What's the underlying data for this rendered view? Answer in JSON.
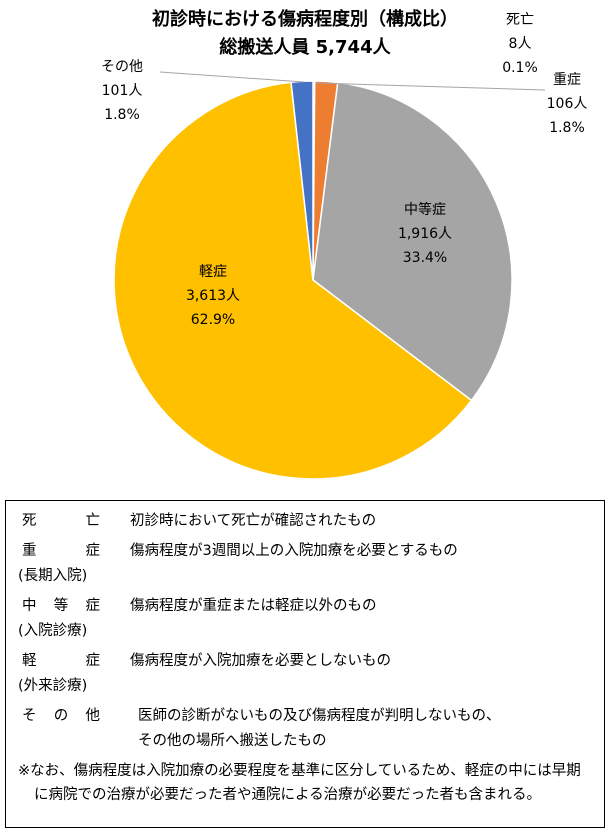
{
  "chart_data": {
    "type": "pie",
    "title": "初診時における傷病程度別（構成比）",
    "subtitle": "総搬送人員 5,744人",
    "categories": [
      "死亡",
      "重症",
      "中等症",
      "軽症",
      "その他"
    ],
    "values": [
      8,
      106,
      1916,
      3613,
      101
    ],
    "value_labels": [
      "8人",
      "106人",
      "1,916人",
      "3,613人",
      "101人"
    ],
    "percentage_labels": [
      "0.1%",
      "1.8%",
      "33.4%",
      "62.9%",
      "1.8%"
    ],
    "colors": [
      "#5b9bd5",
      "#ed7d31",
      "#a5a5a5",
      "#ffc000",
      "#4472c4"
    ]
  },
  "definitions": [
    {
      "term": "死亡",
      "description": [
        "初診時において死亡が確認されたもの"
      ]
    },
    {
      "term": "重症",
      "detail": "(長期入院)",
      "description": [
        "傷病程度が3週間以上の入院加療を必要とするもの"
      ]
    },
    {
      "term": "中等症",
      "detail": "(入院診療)",
      "description": [
        "傷病程度が重症または軽症以外のもの"
      ]
    },
    {
      "term": "軽症",
      "detail": "(外来診療)",
      "description": [
        "傷病程度が入院加療を必要としないもの"
      ]
    },
    {
      "term": "その他",
      "description": [
        "医師の診断がないもの及び傷病程度が判明しないもの、",
        "その他の場所へ搬送したもの"
      ]
    }
  ],
  "footnote": "※なお、傷病程度は入院加療の必要程度を基準に区分しているため、軽症の中には早期に病院での治療が必要だった者や通院による治療が必要だった者も含まれる。"
}
